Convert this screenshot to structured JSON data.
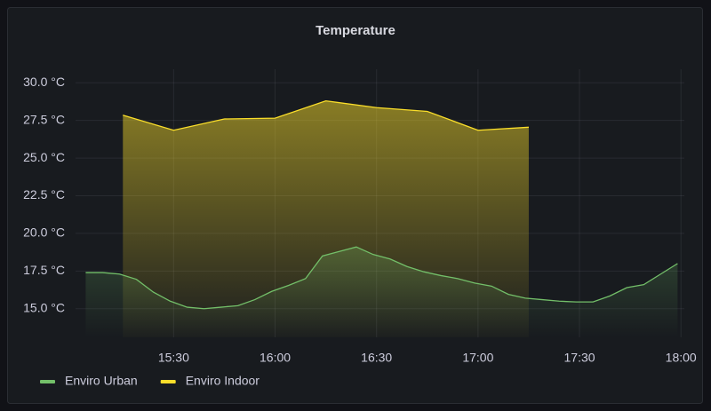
{
  "chart_data": {
    "type": "line",
    "title": "Temperature",
    "xlim": [
      "15:01",
      "18:01"
    ],
    "xticks": [
      "15:30",
      "16:00",
      "16:30",
      "17:00",
      "17:30",
      "18:00"
    ],
    "ylim": [
      13.1,
      30.9
    ],
    "yticks": [
      {
        "value": 15,
        "label": "15.0 °C"
      },
      {
        "value": 17.5,
        "label": "17.5 °C"
      },
      {
        "value": 20,
        "label": "20.0 °C"
      },
      {
        "value": 22.5,
        "label": "22.5 °C"
      },
      {
        "value": 25,
        "label": "25.0 °C"
      },
      {
        "value": 27.5,
        "label": "27.5 °C"
      },
      {
        "value": 30,
        "label": "30.0 °C"
      }
    ],
    "grid": true,
    "legend": "bottom-left",
    "series": [
      {
        "name": "Enviro Urban",
        "color": "#73bf69",
        "x": [
          "15:04",
          "15:09",
          "15:14",
          "15:19",
          "15:24",
          "15:29",
          "15:34",
          "15:39",
          "15:44",
          "15:49",
          "15:54",
          "15:59",
          "16:04",
          "16:09",
          "16:14",
          "16:19",
          "16:24",
          "16:29",
          "16:34",
          "16:39",
          "16:44",
          "16:49",
          "16:54",
          "16:59",
          "17:04",
          "17:09",
          "17:14",
          "17:19",
          "17:24",
          "17:29",
          "17:34",
          "17:39",
          "17:44",
          "17:49",
          "17:54",
          "17:59"
        ],
        "values": [
          17.4,
          17.4,
          17.3,
          16.95,
          16.1,
          15.5,
          15.1,
          15.0,
          15.1,
          15.2,
          15.6,
          16.15,
          16.55,
          17.0,
          18.5,
          18.8,
          19.1,
          18.6,
          18.3,
          17.8,
          17.45,
          17.2,
          17.0,
          16.7,
          16.5,
          15.95,
          15.7,
          15.6,
          15.5,
          15.45,
          15.45,
          15.85,
          16.4,
          16.6,
          17.3,
          18.0
        ]
      },
      {
        "name": "Enviro Indoor",
        "color": "#fade2a",
        "x": [
          "15:15",
          "15:30",
          "15:45",
          "16:00",
          "16:15",
          "16:30",
          "16:45",
          "17:00",
          "17:15"
        ],
        "values": [
          27.85,
          26.85,
          27.6,
          27.65,
          28.8,
          28.35,
          28.1,
          26.85,
          27.05
        ]
      }
    ]
  }
}
